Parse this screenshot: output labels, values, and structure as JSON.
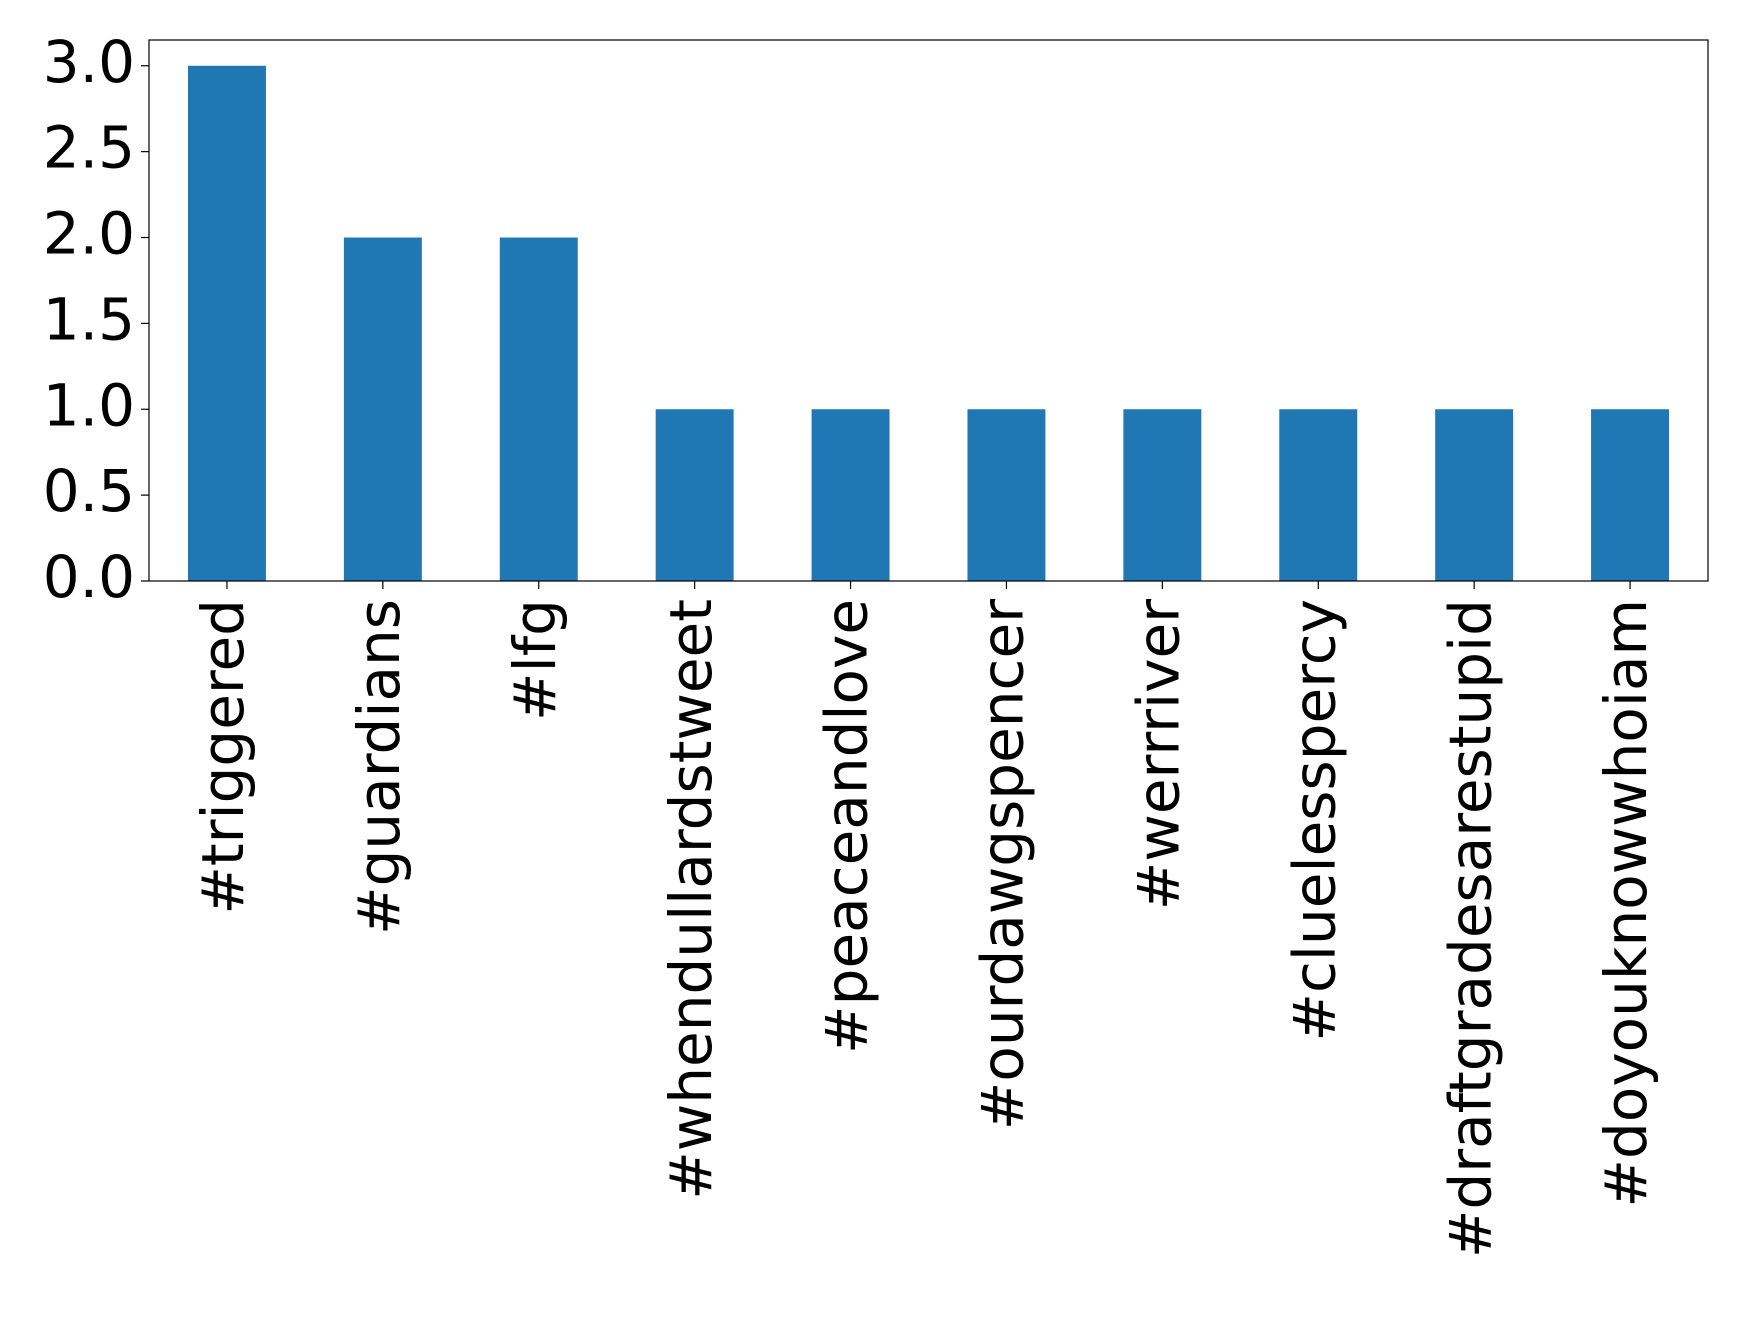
{
  "chart_data": {
    "type": "bar",
    "categories": [
      "#triggered",
      "#guardians",
      "#lfg",
      "#whendullardstweet",
      "#peaceandlove",
      "#ourdawgspencer",
      "#werrriver",
      "#cluelesspercy",
      "#draftgradesarestupid",
      "#doyouknowwhoiam"
    ],
    "values": [
      3,
      2,
      2,
      1,
      1,
      1,
      1,
      1,
      1,
      1
    ],
    "color": "#1f77b4",
    "ylim": [
      0,
      3.15
    ],
    "yticks": [
      {
        "value": 0,
        "label": "0.0"
      },
      0.5,
      {
        "value": 1,
        "label": "1.0"
      },
      1.5,
      {
        "value": 2,
        "label": "2.0"
      },
      2.5,
      {
        "value": 3,
        "label": "3.0"
      }
    ],
    "grid": false
  }
}
